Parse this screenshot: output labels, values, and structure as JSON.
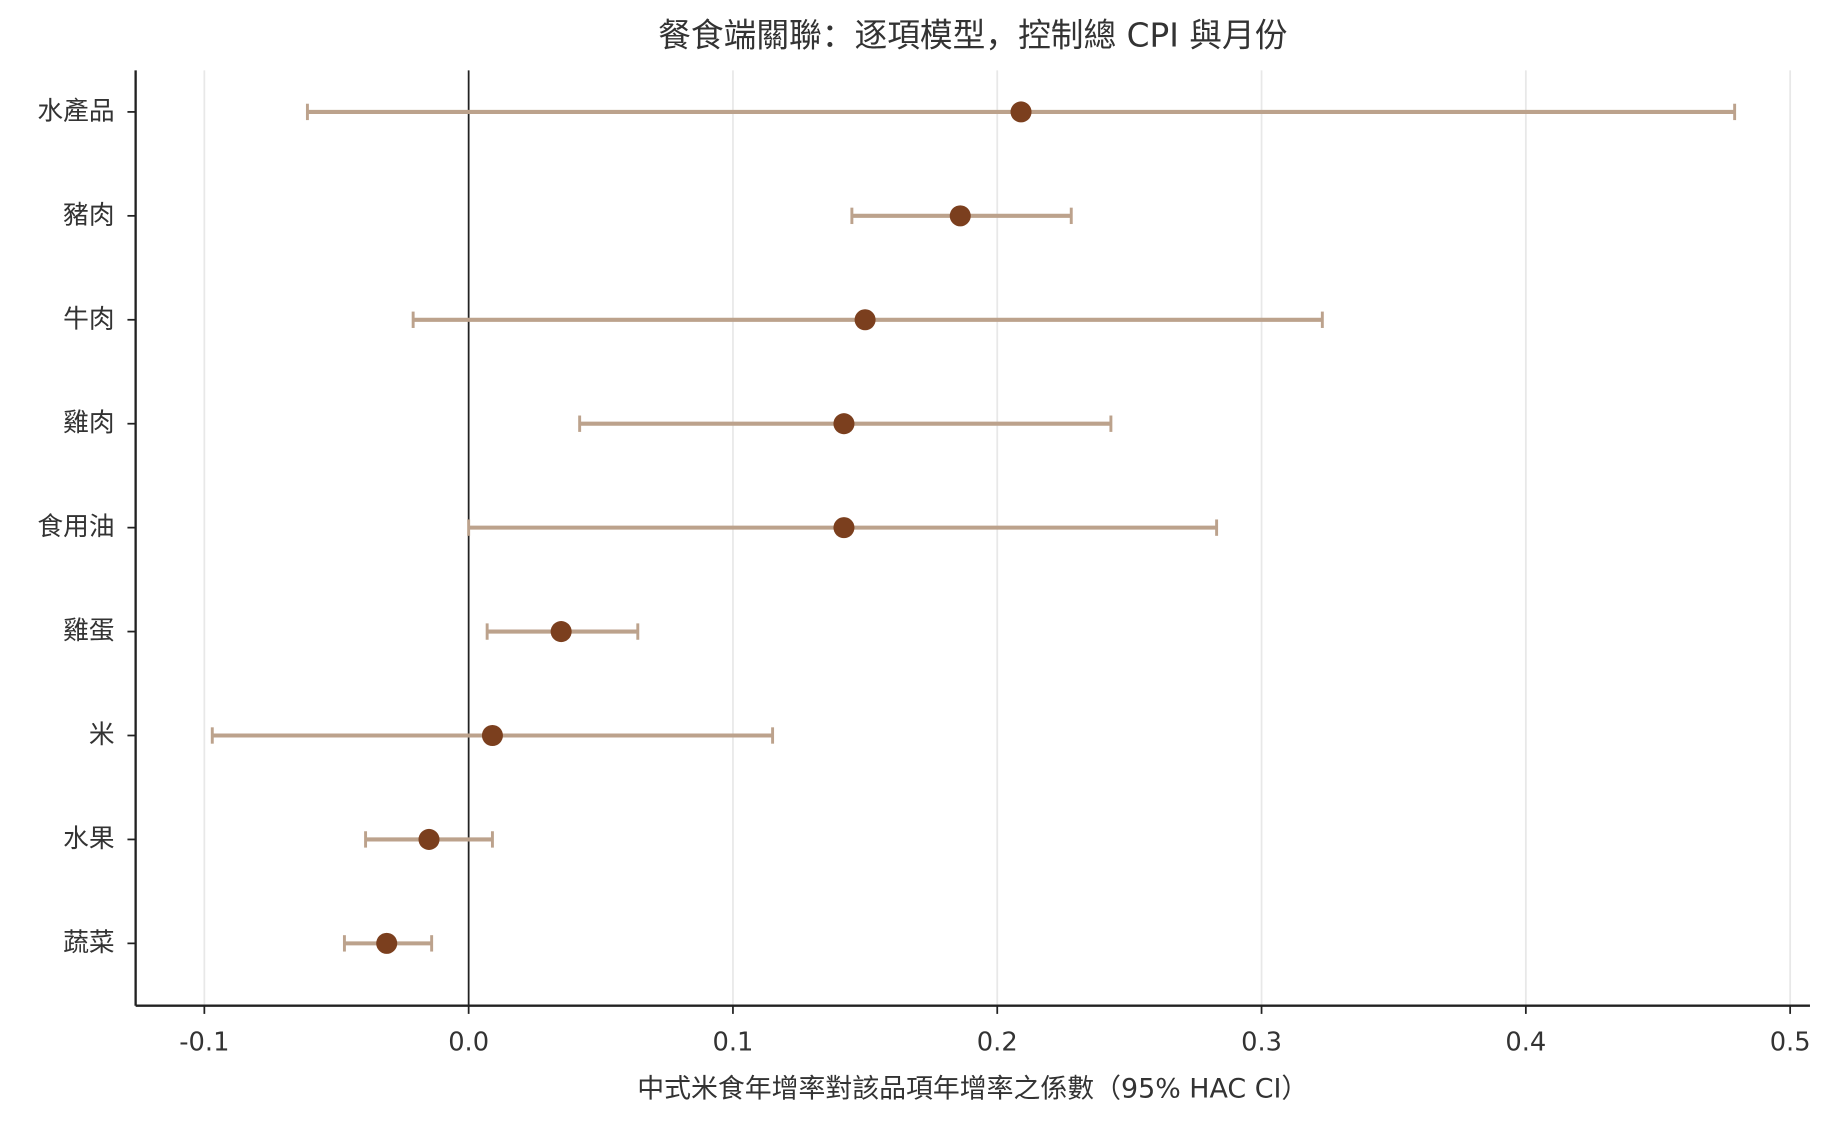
{
  "chart_data": {
    "type": "errorbar",
    "title": "餐食端關聯：逐項模型，控制總 CPI 與月份",
    "x_label": "中式米食年增率對該品項年增率之係數（95% HAC CI）",
    "categories": [
      "水產品",
      "豬肉",
      "牛肉",
      "雞肉",
      "食用油",
      "雞蛋",
      "米",
      "水果",
      "蔬菜"
    ],
    "values": [
      0.209,
      0.186,
      0.15,
      0.142,
      0.142,
      0.035,
      0.009,
      -0.015,
      -0.031
    ],
    "ci_lower": [
      -0.061,
      0.145,
      -0.021,
      0.042,
      0.0,
      0.007,
      -0.097,
      -0.039,
      -0.047
    ],
    "ci_upper": [
      0.479,
      0.228,
      0.323,
      0.243,
      0.283,
      0.064,
      0.115,
      0.009,
      -0.014
    ],
    "color": "#7b3f1e",
    "ci_color": "#bca28c",
    "reference_line": 0,
    "xlim": [
      -0.126,
      0.5075
    ],
    "xticks": [
      -0.1,
      {
        "value": 0,
        "label": "0.0"
      },
      0.1,
      0.2,
      0.3,
      0.4,
      0.5
    ],
    "grid": true
  }
}
